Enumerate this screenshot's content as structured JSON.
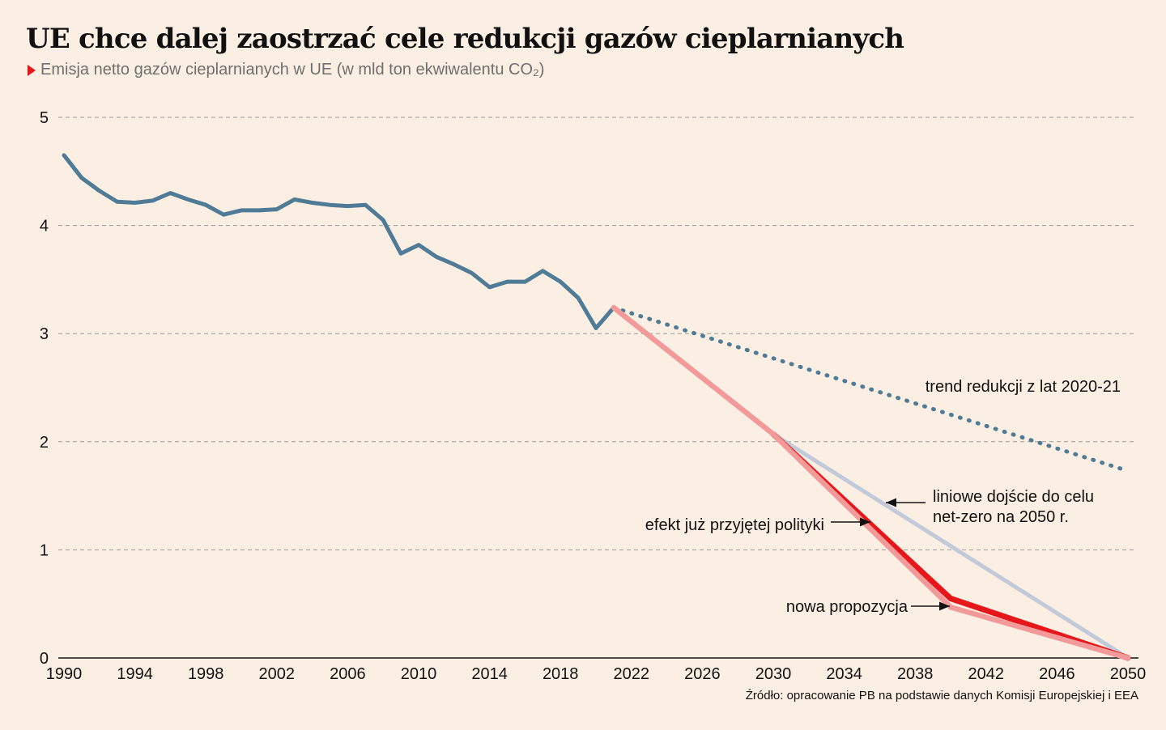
{
  "header": {
    "title": "UE chce dalej zaostrzać cele redukcji gazów cieplarnianych",
    "subtitle": "Emisja netto gazów cieplarnianych w UE (w mld ton ekwiwalentu CO₂)"
  },
  "source": "Źródło: opracowanie PB na podstawie danych Komisji Europejskiej i EEA",
  "colors": {
    "background": "#fbeee2",
    "historical": "#4f7b96",
    "trend": "#4f7b96",
    "linear": "#c2c9d8",
    "policy": "#e5171b",
    "proposal": "#f29a9a",
    "marker": "#e5171b"
  },
  "chart_data": {
    "type": "line",
    "title": "UE chce dalej zaostrzać cele redukcji gazów cieplarnianych",
    "subtitle": "Emisja netto gazów cieplarnianych w UE (w mld ton ekwiwalentu CO₂)",
    "xlim": [
      1990,
      2050
    ],
    "ylim": [
      0,
      5
    ],
    "x_ticks": [
      "1990",
      "1994",
      "1998",
      "2002",
      "2006",
      "2010",
      "2014",
      "2018",
      "2022",
      "2026",
      "2030",
      "2034",
      "2038",
      "2042",
      "2046",
      "2050"
    ],
    "x_tick_values": [
      1990,
      1994,
      1998,
      2002,
      2006,
      2010,
      2014,
      2018,
      2022,
      2026,
      2030,
      2034,
      2038,
      2042,
      2046,
      2050
    ],
    "y_ticks": [
      "0",
      "1",
      "2",
      "3",
      "4",
      "5"
    ],
    "y_tick_values": [
      0,
      1,
      2,
      3,
      4,
      5
    ],
    "grid": "horizontal dashed",
    "series": [
      {
        "id": "historical",
        "style": "solid",
        "x": [
          1990,
          1991,
          1992,
          1993,
          1994,
          1995,
          1996,
          1997,
          1998,
          1999,
          2000,
          2001,
          2002,
          2003,
          2004,
          2005,
          2006,
          2007,
          2008,
          2009,
          2010,
          2011,
          2012,
          2013,
          2014,
          2015,
          2016,
          2017,
          2018,
          2019,
          2020,
          2021
        ],
        "values": [
          4.65,
          4.44,
          4.32,
          4.22,
          4.21,
          4.23,
          4.3,
          4.24,
          4.19,
          4.1,
          4.14,
          4.14,
          4.15,
          4.24,
          4.21,
          4.19,
          4.18,
          4.19,
          4.05,
          3.74,
          3.82,
          3.71,
          3.64,
          3.56,
          3.43,
          3.48,
          3.48,
          3.58,
          3.48,
          3.33,
          3.05,
          3.24
        ]
      },
      {
        "id": "trend",
        "style": "dotted",
        "x": [
          2021,
          2050
        ],
        "values": [
          3.24,
          1.73
        ]
      },
      {
        "id": "linear",
        "style": "solid",
        "x": [
          2030,
          2050
        ],
        "values": [
          2.07,
          0
        ]
      },
      {
        "id": "policy",
        "style": "solid",
        "x": [
          2030,
          2040,
          2050
        ],
        "values": [
          2.07,
          0.55,
          0
        ]
      },
      {
        "id": "proposal",
        "style": "solid",
        "x": [
          2021,
          2030,
          2040,
          2050
        ],
        "values": [
          3.24,
          2.07,
          0.47,
          0
        ]
      }
    ],
    "annotations": [
      {
        "id": "trend",
        "lines": [
          "trend redukcji z lat 2020-21"
        ]
      },
      {
        "id": "linear",
        "lines": [
          "liniowe dojście do celu",
          "net-zero na 2050 r."
        ]
      },
      {
        "id": "policy",
        "lines": [
          "efekt już przyjętej polityki"
        ]
      },
      {
        "id": "proposal",
        "lines": [
          "nowa propozycja"
        ]
      }
    ]
  }
}
